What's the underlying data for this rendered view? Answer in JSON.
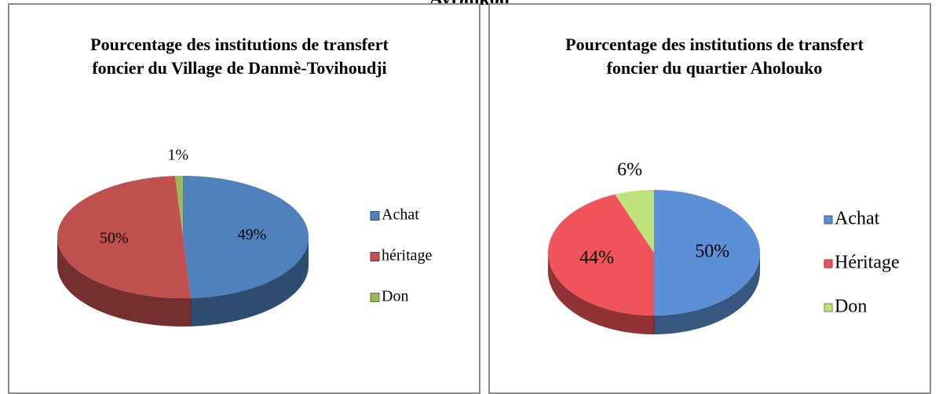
{
  "caption": "Avrankou",
  "chart_data": [
    {
      "type": "pie3d",
      "title": "Pourcentage des institutions de transfert foncier du Village de Danmè-Tovihoudji",
      "categories": [
        "Achat",
        "héritage",
        "Don"
      ],
      "values": [
        49,
        50,
        1
      ],
      "value_labels": [
        "49%",
        "50%",
        "1%"
      ],
      "colors": [
        "#4f81bd",
        "#c0504d",
        "#9bbb59"
      ],
      "legend": "right"
    },
    {
      "type": "pie3d",
      "title": "Pourcentage des institutions de transfert foncier du quartier Aholouko",
      "categories": [
        "Achat",
        "Héritage",
        "Don"
      ],
      "values": [
        50,
        44,
        6
      ],
      "value_labels": [
        "50%",
        "44%",
        "6%"
      ],
      "colors": [
        "#5b8fd6",
        "#f0545a",
        "#bfe27a"
      ],
      "legend": "right"
    }
  ]
}
